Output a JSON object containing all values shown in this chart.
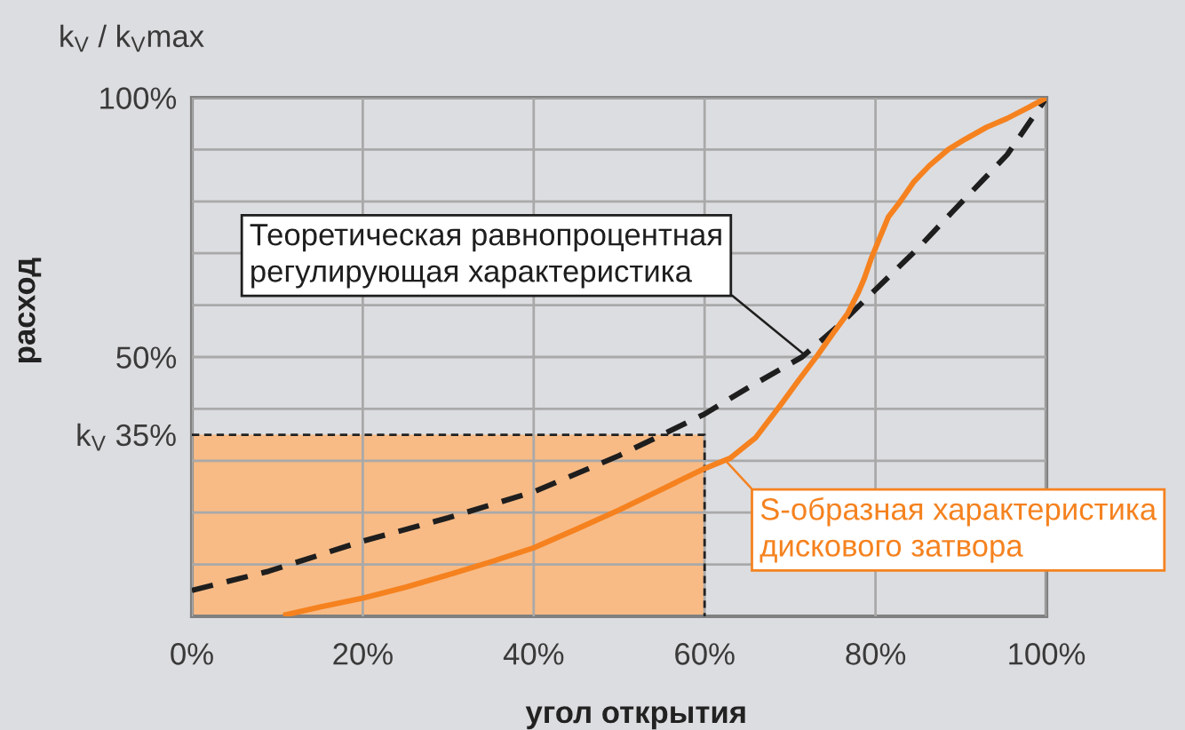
{
  "chart_data": {
    "type": "line",
    "xlabel": "угол открытия",
    "ylabel": "расход",
    "annotations": [
      "k$_{V}$ / k$_{V}$max"
    ],
    "xlim": [
      0,
      100
    ],
    "ylim": [
      0,
      100
    ],
    "xticks": [
      {
        "value": 0,
        "label": "0%"
      },
      {
        "value": 20,
        "label": "20%"
      },
      {
        "value": 40,
        "label": "40%"
      },
      {
        "value": 60,
        "label": "60%"
      },
      {
        "value": 80,
        "label": "80%"
      },
      {
        "value": 100,
        "label": "100%"
      }
    ],
    "yticks": [
      {
        "value": 10,
        "label": null
      },
      {
        "value": 20,
        "label": null
      },
      {
        "value": 30,
        "label": null
      },
      {
        "value": 35,
        "label": "k$_{V}$ 35%"
      },
      {
        "value": 40,
        "label": null
      },
      {
        "value": 50,
        "label": "50%"
      },
      {
        "value": 60,
        "label": null
      },
      {
        "value": 70,
        "label": null
      },
      {
        "value": 80,
        "label": null
      },
      {
        "value": 90,
        "label": null
      },
      {
        "value": 100,
        "label": "100%"
      }
    ],
    "grid": true,
    "series": [
      {
        "type": "area",
        "color": "#f8bb86",
        "line_style": "dashed",
        "x": [
          0,
          60
        ],
        "values": [
          35,
          35
        ]
      },
      {
        "name": "Теоретическая равнопроцентная\nрегулирующая характеристика",
        "color": "#1e1e1e",
        "line_style": "dashed",
        "x": [
          0,
          9,
          20,
          30,
          40,
          50,
          55,
          60,
          65,
          71.4,
          76,
          80,
          85,
          89,
          92.5,
          95.4,
          100
        ],
        "values": [
          5,
          8.7,
          14.5,
          19,
          24,
          31,
          35,
          39,
          44,
          50,
          56.5,
          63,
          71,
          78,
          84,
          89,
          100
        ]
      },
      {
        "name": "S-образная характеристика\nдискового затвора",
        "color": "#f5821f",
        "line_style": "solid",
        "x": [
          11,
          15,
          20,
          25,
          30,
          35,
          40,
          45,
          50,
          55,
          60,
          63,
          66,
          69,
          71,
          73.2,
          75,
          76.7,
          78,
          78.7,
          79.5,
          80.5,
          81.5,
          82.9,
          84.5,
          86.3,
          88.5,
          90.5,
          93,
          95.4,
          98,
          100
        ],
        "values": [
          0.3,
          1.8,
          3.5,
          5.6,
          8,
          10.5,
          13.2,
          16.8,
          20.5,
          24.5,
          28.5,
          30.5,
          34.5,
          41,
          45.5,
          50.3,
          54.5,
          58.3,
          62.5,
          65.2,
          69,
          73,
          77,
          80,
          83.8,
          86.9,
          90,
          92,
          94.3,
          96,
          98.2,
          100
        ]
      }
    ]
  }
}
